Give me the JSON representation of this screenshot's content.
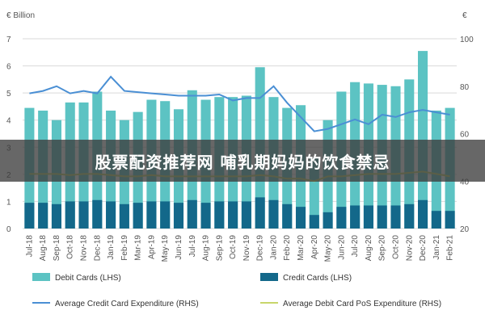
{
  "chart_data": {
    "type": "bar",
    "left_unit": "€ Billion",
    "right_unit": "€",
    "categories": [
      "Jul-18",
      "Aug-18",
      "Sep-18",
      "Oct-18",
      "Nov-18",
      "Dec-18",
      "Jan-19",
      "Feb-19",
      "Mar-19",
      "Apr-19",
      "May-19",
      "Jun-19",
      "Jul-19",
      "Aug-19",
      "Sep-19",
      "Oct-19",
      "Nov-19",
      "Dec-19",
      "Jan-20",
      "Feb-20",
      "Mar-20",
      "Apr-20",
      "May-20",
      "Jun-20",
      "Jul-20",
      "Aug-20",
      "Sep-20",
      "Oct-20",
      "Nov-20",
      "Dec-20",
      "Jan-21",
      "Feb-21"
    ],
    "ylim_left": [
      0,
      7
    ],
    "ylim_right": [
      20,
      100
    ],
    "yticks_left": [
      "0",
      "1",
      "2",
      "3",
      "4",
      "5",
      "6",
      "7"
    ],
    "yticks_right": [
      "20",
      "40",
      "60",
      "80",
      "100"
    ],
    "series": [
      {
        "name": "Debit Cards (LHS)",
        "kind": "bar",
        "axis": "left",
        "color": "#5cc3c3",
        "values": [
          4.45,
          4.35,
          4.0,
          4.65,
          4.65,
          5.05,
          4.35,
          4.0,
          4.3,
          4.75,
          4.7,
          4.4,
          5.1,
          4.75,
          4.85,
          4.85,
          4.9,
          5.95,
          4.85,
          4.45,
          4.55,
          2.6,
          4.0,
          5.05,
          5.4,
          5.35,
          5.3,
          5.25,
          5.5,
          6.55,
          4.35,
          4.45
        ]
      },
      {
        "name": "Credit Cards (LHS)",
        "kind": "bar",
        "axis": "left",
        "color": "#13688a",
        "values": [
          0.95,
          0.95,
          0.9,
          1.0,
          1.0,
          1.05,
          1.0,
          0.9,
          0.95,
          1.0,
          1.0,
          0.95,
          1.05,
          0.95,
          1.0,
          1.0,
          1.0,
          1.15,
          1.05,
          0.9,
          0.8,
          0.5,
          0.6,
          0.8,
          0.85,
          0.85,
          0.85,
          0.85,
          0.9,
          1.05,
          0.65,
          0.65
        ]
      },
      {
        "name": "Average Credit Card Expenditure (RHS)",
        "kind": "line",
        "axis": "right",
        "color": "#4a8fd4",
        "values": [
          77,
          78,
          80,
          77,
          78,
          77,
          84,
          78,
          77.5,
          77,
          76.5,
          76,
          76,
          76,
          76.5,
          74,
          75,
          75,
          80,
          73,
          67,
          61,
          62,
          64,
          66,
          64,
          68,
          67,
          69,
          70,
          69,
          68
        ]
      },
      {
        "name": "Average Debit Card PoS Expenditure (RHS)",
        "kind": "line",
        "axis": "right",
        "color": "#c8d66a",
        "values": [
          43,
          43,
          43,
          42.5,
          43,
          43,
          42.5,
          42,
          42,
          42.5,
          42,
          42,
          42,
          42,
          42,
          42,
          42,
          42.5,
          42,
          41,
          41,
          40,
          42,
          42,
          42.5,
          43,
          43,
          43,
          43.5,
          44,
          43,
          42
        ]
      }
    ],
    "legend_position": "bottom",
    "grid": true
  },
  "overlay": {
    "text": "股票配资推荐网 哺乳期妈妈的饮食禁忌"
  }
}
